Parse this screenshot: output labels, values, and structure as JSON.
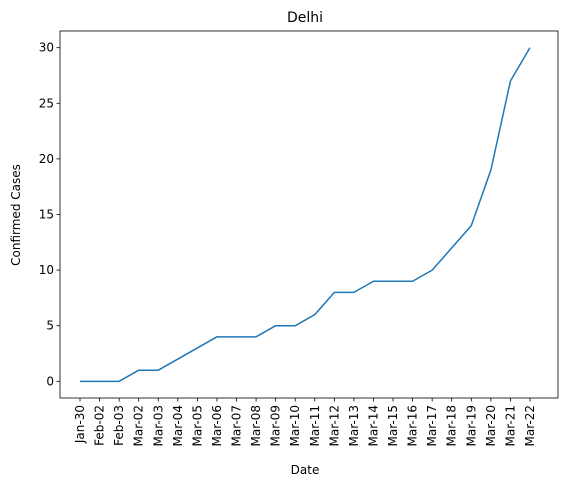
{
  "chart_data": {
    "type": "line",
    "title": "Delhi",
    "xlabel": "Date",
    "ylabel": "Confirmed Cases",
    "categories": [
      "Jan-30",
      "Feb-02",
      "Feb-03",
      "Mar-02",
      "Mar-03",
      "Mar-04",
      "Mar-05",
      "Mar-06",
      "Mar-07",
      "Mar-08",
      "Mar-09",
      "Mar-10",
      "Mar-11",
      "Mar-12",
      "Mar-13",
      "Mar-14",
      "Mar-15",
      "Mar-16",
      "Mar-17",
      "Mar-18",
      "Mar-19",
      "Mar-20",
      "Mar-21",
      "Mar-22"
    ],
    "series": [
      {
        "values": [
          0,
          0,
          0,
          1,
          1,
          2,
          3,
          4,
          4,
          4,
          5,
          5,
          6,
          8,
          8,
          9,
          9,
          9,
          10,
          12,
          14,
          19,
          27,
          30
        ]
      }
    ],
    "yticks": [
      0,
      5,
      10,
      15,
      20,
      25,
      30
    ],
    "ylim": [
      -1.5,
      31.5
    ],
    "grid": false,
    "colors": {
      "line": "#1f77b4",
      "axis": "#000000"
    }
  }
}
